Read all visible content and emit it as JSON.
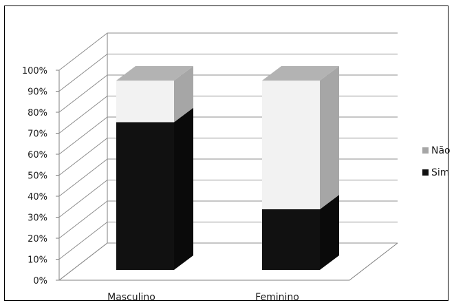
{
  "chart_data": {
    "type": "bar",
    "stacked": true,
    "three_d": true,
    "categories": [
      "Masculino",
      "Feminino"
    ],
    "series": [
      {
        "name": "Sim",
        "values": [
          78,
          32
        ],
        "color": "#111111"
      },
      {
        "name": "Não",
        "values": [
          22,
          68
        ],
        "color": "#9a9a9a"
      }
    ],
    "ylim": [
      0,
      100
    ],
    "yticks": [
      "0%",
      "10%",
      "20%",
      "30%",
      "40%",
      "50%",
      "60%",
      "70%",
      "80%",
      "90%",
      "100%"
    ],
    "grid": true,
    "legend": "right",
    "legend_order": [
      "Não",
      "Sim"
    ],
    "title": "",
    "xlabel": "",
    "ylabel": ""
  }
}
